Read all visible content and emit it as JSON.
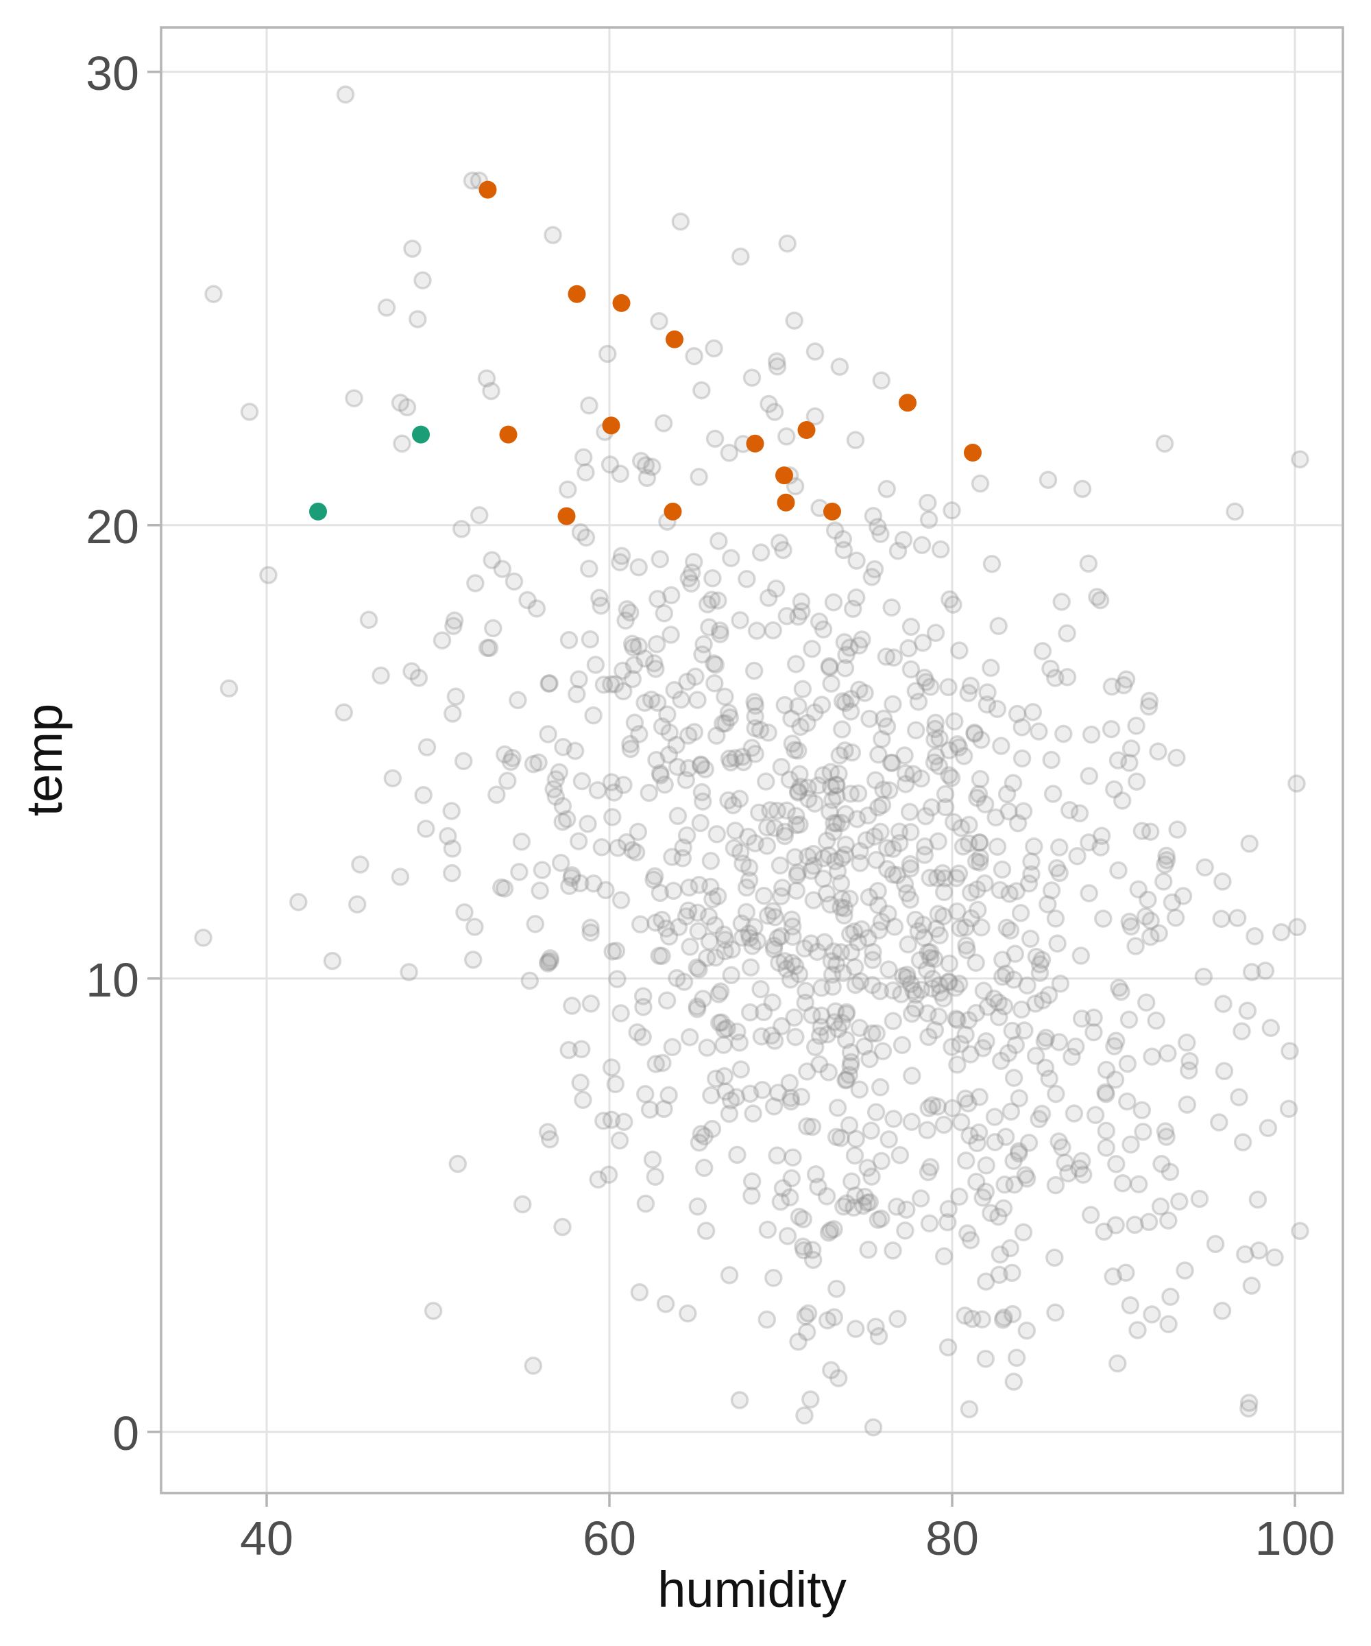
{
  "chart_data": {
    "type": "scatter",
    "title": "",
    "xlabel": "humidity",
    "ylabel": "temp",
    "x_ticks": [
      40,
      60,
      80,
      100
    ],
    "y_ticks": [
      0,
      10,
      20,
      30
    ],
    "xlim": [
      33.84,
      102.8
    ],
    "ylim": [
      -1.35,
      30.98
    ],
    "grid": "major-only",
    "legend": "none",
    "series": [
      {
        "name": "all-observations",
        "role": "background",
        "marker": "circle-outlined",
        "color": "#8B8B8B",
        "fill": "#9A9A9A",
        "alpha": 0.2,
        "cloud": {
          "count": 1150,
          "seed": 11,
          "mean": [
            74.3,
            11.5
          ],
          "sd": [
            11.4,
            5.2
          ],
          "corr": -0.4,
          "clip_x": [
            36.0,
            100.4
          ],
          "clip_y": [
            0.1,
            27.0
          ]
        },
        "notable_points": [
          [
            44.6,
            29.5
          ],
          [
            52.0,
            27.6
          ],
          [
            52.4,
            27.6
          ],
          [
            56.7,
            26.4
          ],
          [
            48.5,
            26.1
          ],
          [
            49.1,
            25.4
          ],
          [
            47.0,
            24.8
          ],
          [
            62.9,
            24.5
          ],
          [
            66.1,
            23.9
          ],
          [
            36.9,
            25.1
          ],
          [
            39.0,
            22.5
          ],
          [
            45.1,
            22.8
          ],
          [
            47.8,
            22.7
          ],
          [
            48.2,
            22.6
          ],
          [
            47.9,
            21.8
          ],
          [
            69.8,
            23.5
          ],
          [
            72.0,
            22.4
          ],
          [
            40.1,
            18.9
          ],
          [
            37.8,
            16.4
          ],
          [
            36.3,
            10.9
          ],
          [
            85.6,
            21.0
          ],
          [
            87.6,
            20.8
          ],
          [
            92.4,
            21.8
          ],
          [
            96.5,
            20.3
          ],
          [
            67.6,
            0.7
          ],
          [
            75.4,
            0.1
          ],
          [
            81.0,
            0.5
          ],
          [
            100.1,
            14.3
          ],
          [
            99.7,
            8.4
          ],
          [
            97.9,
            4.0
          ]
        ]
      },
      {
        "name": "highlight-green",
        "role": "highlight",
        "marker": "circle-solid",
        "color": "#1B9E77",
        "points": [
          [
            43.0,
            20.3
          ],
          [
            49.0,
            22.0
          ]
        ]
      },
      {
        "name": "highlight-orange",
        "role": "highlight",
        "marker": "circle-solid",
        "color": "#D95F02",
        "points": [
          [
            52.9,
            27.4
          ],
          [
            58.1,
            25.1
          ],
          [
            60.7,
            24.9
          ],
          [
            63.8,
            24.1
          ],
          [
            54.1,
            22.0
          ],
          [
            60.1,
            22.2
          ],
          [
            68.5,
            21.8
          ],
          [
            71.5,
            22.1
          ],
          [
            77.4,
            22.7
          ],
          [
            81.2,
            21.6
          ],
          [
            57.5,
            20.2
          ],
          [
            63.7,
            20.3
          ],
          [
            70.2,
            21.1
          ],
          [
            70.3,
            20.5
          ],
          [
            73.0,
            20.3
          ]
        ]
      }
    ]
  },
  "axes": {
    "x_title": "humidity",
    "y_title": "temp",
    "x_tick_labels": [
      "40",
      "60",
      "80",
      "100"
    ],
    "y_tick_labels": [
      "0",
      "10",
      "20",
      "30"
    ]
  },
  "styles": {
    "background": "#FFFFFF",
    "panel_background": "#FFFFFF",
    "panel_border": "#B5B5B5",
    "gridline": "#E3E3E3",
    "tick_mark": "#B5B5B5",
    "tick_label_color": "#4D4D4D",
    "axis_title_color": "#111111",
    "gray_point_stroke": "#8B8B8B",
    "gray_point_fill": "#9A9A9A",
    "green_point": "#1B9E77",
    "orange_point": "#D95F02"
  }
}
